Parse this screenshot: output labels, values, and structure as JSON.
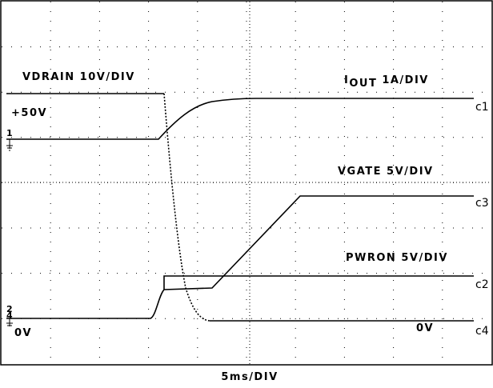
{
  "screen": {
    "labels": {
      "vdrain": "VDRAIN 10V/DIV",
      "vdrain_level": "+50V",
      "iout_prefix": "I",
      "iout_sub": "OUT",
      "iout_scale": "1A/DIV",
      "vgate": "VGATE 5V/DIV",
      "pwron": "PWRON 5V/DIV",
      "zero_left": "0V",
      "zero_right": "0V",
      "timebase": "5ms/DIV"
    },
    "channels": [
      "c1",
      "c3",
      "c2",
      "c4"
    ],
    "markers": [
      "1",
      "2",
      "4"
    ]
  }
}
